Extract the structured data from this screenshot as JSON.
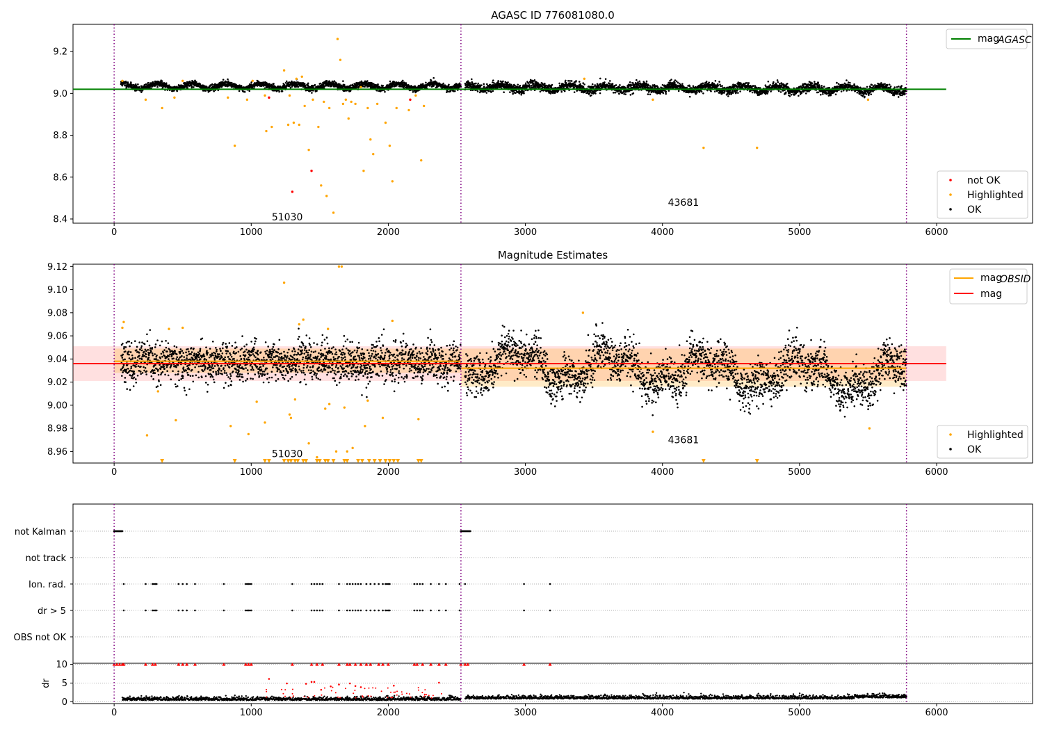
{
  "chart_data": [
    {
      "id": "mag-vs-time",
      "type": "scatter",
      "title": "AGASC ID 776081080.0",
      "xlim": [
        -300,
        6700
      ],
      "ylim": [
        8.38,
        9.33
      ],
      "xticks": [
        0,
        1000,
        2000,
        3000,
        4000,
        5000,
        6000
      ],
      "yticks": [
        8.4,
        8.6,
        8.8,
        9.0,
        9.2
      ],
      "vlines": [
        0,
        2530,
        5780
      ],
      "hline": {
        "y": 9.02,
        "x0": -300,
        "x1": 6070,
        "color": "#008000"
      },
      "annotations": [
        {
          "x": 1150,
          "y": 8.38,
          "text": "51030"
        },
        {
          "x": 4040,
          "y": 8.45,
          "text": "43681"
        }
      ],
      "legend_top": {
        "position": "top-right",
        "entries": [
          {
            "label": "mag",
            "sub": "AGASC",
            "color": "#008000"
          }
        ]
      },
      "legend_bottom": {
        "position": "bottom-right",
        "entries": [
          {
            "label": "not OK",
            "color": "#ff0000"
          },
          {
            "label": "Highlighted",
            "color": "#ffa500"
          },
          {
            "label": "OK",
            "color": "#000000"
          }
        ]
      },
      "ok_segments": [
        {
          "x0": 50,
          "x1": 2530,
          "center": 9.035,
          "spread": 0.012,
          "drift": 0
        },
        {
          "x0": 2560,
          "x1": 5780,
          "center": 9.03,
          "spread": 0.018,
          "drift": -0.01
        }
      ],
      "highlighted": [
        [
          60,
          9.06
        ],
        [
          230,
          8.97
        ],
        [
          350,
          8.93
        ],
        [
          440,
          8.98
        ],
        [
          500,
          9.06
        ],
        [
          830,
          8.98
        ],
        [
          880,
          8.75
        ],
        [
          970,
          8.97
        ],
        [
          1010,
          9.06
        ],
        [
          1100,
          8.99
        ],
        [
          1110,
          8.82
        ],
        [
          1150,
          8.84
        ],
        [
          1240,
          9.11
        ],
        [
          1270,
          8.85
        ],
        [
          1280,
          8.99
        ],
        [
          1310,
          8.86
        ],
        [
          1330,
          9.07
        ],
        [
          1350,
          8.85
        ],
        [
          1370,
          9.08
        ],
        [
          1390,
          8.94
        ],
        [
          1420,
          8.73
        ],
        [
          1450,
          8.97
        ],
        [
          1490,
          8.84
        ],
        [
          1510,
          8.56
        ],
        [
          1530,
          8.96
        ],
        [
          1550,
          8.51
        ],
        [
          1570,
          8.93
        ],
        [
          1600,
          8.43
        ],
        [
          1630,
          9.26
        ],
        [
          1650,
          9.16
        ],
        [
          1670,
          8.95
        ],
        [
          1690,
          8.97
        ],
        [
          1710,
          8.88
        ],
        [
          1730,
          8.96
        ],
        [
          1760,
          8.95
        ],
        [
          1800,
          9.03
        ],
        [
          1820,
          8.63
        ],
        [
          1850,
          8.93
        ],
        [
          1870,
          8.78
        ],
        [
          1890,
          8.71
        ],
        [
          1920,
          8.95
        ],
        [
          1980,
          8.86
        ],
        [
          2010,
          8.75
        ],
        [
          2030,
          8.58
        ],
        [
          2060,
          8.93
        ],
        [
          2150,
          8.92
        ],
        [
          2200,
          8.99
        ],
        [
          2240,
          8.68
        ],
        [
          2260,
          8.94
        ],
        [
          3430,
          9.07
        ],
        [
          3930,
          8.97
        ],
        [
          4300,
          8.74
        ],
        [
          4690,
          8.74
        ],
        [
          5500,
          8.97
        ]
      ],
      "not_ok": [
        [
          1130,
          8.98
        ],
        [
          1300,
          8.53
        ],
        [
          1440,
          8.63
        ],
        [
          2160,
          8.97
        ]
      ]
    },
    {
      "id": "magnitude-estimates",
      "type": "scatter",
      "title": "Magnitude Estimates",
      "xlim": [
        -300,
        6700
      ],
      "ylim": [
        8.95,
        9.122
      ],
      "xticks": [
        0,
        1000,
        2000,
        3000,
        4000,
        5000,
        6000
      ],
      "yticks": [
        8.96,
        8.98,
        9.0,
        9.02,
        9.04,
        9.06,
        9.08,
        9.1,
        9.12
      ],
      "vlines": [
        0,
        2530,
        5780
      ],
      "mag_line": {
        "y": 9.036,
        "band": [
          9.021,
          9.051
        ],
        "x0": -300,
        "x1": 6070,
        "color": "#ff0000"
      },
      "obsid_mag": [
        {
          "x0": 0,
          "x1": 2530,
          "y": 9.038,
          "band": [
            9.028,
            9.049
          ]
        },
        {
          "x0": 2530,
          "x1": 5780,
          "y": 9.032,
          "band": [
            9.016,
            9.049
          ]
        }
      ],
      "annotations": [
        {
          "x": 1150,
          "y": 8.955,
          "text": "51030"
        },
        {
          "x": 4040,
          "y": 8.967,
          "text": "43681"
        }
      ],
      "legend_top": {
        "position": "top-right",
        "entries": [
          {
            "label": "mag",
            "sub": "OBSID",
            "color": "#ffa500"
          },
          {
            "label": "mag",
            "sub": "",
            "color": "#ff0000"
          }
        ]
      },
      "legend_bottom": {
        "position": "bottom-right",
        "entries": [
          {
            "label": "Highlighted",
            "color": "#ffa500"
          },
          {
            "label": "OK",
            "color": "#000000"
          }
        ]
      },
      "highlighted": [
        [
          60,
          9.067
        ],
        [
          70,
          9.072
        ],
        [
          240,
          8.974
        ],
        [
          320,
          9.012
        ],
        [
          400,
          9.066
        ],
        [
          450,
          8.987
        ],
        [
          500,
          9.067
        ],
        [
          850,
          8.982
        ],
        [
          980,
          8.975
        ],
        [
          1040,
          9.003
        ],
        [
          1100,
          8.985
        ],
        [
          1240,
          9.106
        ],
        [
          1280,
          8.992
        ],
        [
          1290,
          8.989
        ],
        [
          1320,
          9.005
        ],
        [
          1350,
          9.07
        ],
        [
          1380,
          9.074
        ],
        [
          1420,
          8.967
        ],
        [
          1480,
          8.955
        ],
        [
          1540,
          8.997
        ],
        [
          1560,
          9.066
        ],
        [
          1570,
          9.001
        ],
        [
          1620,
          8.96
        ],
        [
          1640,
          9.12
        ],
        [
          1660,
          9.12
        ],
        [
          1680,
          8.998
        ],
        [
          1700,
          8.96
        ],
        [
          1740,
          8.963
        ],
        [
          1830,
          8.982
        ],
        [
          1850,
          9.004
        ],
        [
          1960,
          8.989
        ],
        [
          2030,
          9.073
        ],
        [
          2220,
          8.988
        ],
        [
          3420,
          9.08
        ],
        [
          3930,
          8.977
        ],
        [
          5510,
          8.98
        ]
      ],
      "censored": [
        350,
        880,
        1100,
        1130,
        1240,
        1270,
        1290,
        1320,
        1340,
        1380,
        1400,
        1480,
        1500,
        1540,
        1560,
        1600,
        1680,
        1700,
        1780,
        1810,
        1860,
        1900,
        1940,
        1980,
        2010,
        2040,
        2070,
        2220,
        2240,
        4300,
        4690
      ]
    },
    {
      "id": "flags",
      "type": "scatter",
      "xlim": [
        -300,
        6700
      ],
      "xticks": [
        0,
        1000,
        2000,
        3000,
        4000,
        5000,
        6000
      ],
      "rows": [
        "not Kalman",
        "not track",
        "Ion. rad.",
        "dr > 5",
        "OBS not OK"
      ],
      "vlines": [
        0,
        2530,
        5780
      ],
      "not_kalman": [
        [
          0,
          60
        ],
        [
          2530,
          2600
        ]
      ],
      "ion_rad": [
        70,
        230,
        280,
        290,
        300,
        310,
        470,
        500,
        530,
        590,
        800,
        960,
        970,
        980,
        990,
        1000,
        1300,
        1440,
        1460,
        1480,
        1500,
        1520,
        1640,
        1700,
        1720,
        1740,
        1760,
        1780,
        1800,
        1840,
        1870,
        1900,
        1930,
        1960,
        1980,
        1990,
        2000,
        2010,
        2190,
        2210,
        2230,
        2250,
        2310,
        2370,
        2420,
        2520,
        2560,
        2990,
        3180
      ],
      "dr_gt5": [
        70,
        230,
        280,
        290,
        300,
        310,
        470,
        500,
        530,
        590,
        800,
        960,
        970,
        980,
        990,
        1000,
        1300,
        1440,
        1460,
        1480,
        1500,
        1520,
        1640,
        1700,
        1720,
        1740,
        1760,
        1780,
        1800,
        1840,
        1870,
        1900,
        1930,
        1960,
        1980,
        1990,
        2000,
        2010,
        2190,
        2210,
        2230,
        2250,
        2310,
        2370,
        2420,
        2520,
        2990,
        3180
      ]
    },
    {
      "id": "dr",
      "type": "scatter",
      "ylabel": "dr",
      "xlim": [
        -300,
        6700
      ],
      "ylim": [
        -0.5,
        10.3
      ],
      "xticks": [
        0,
        1000,
        2000,
        3000,
        4000,
        5000,
        6000
      ],
      "xtick_labels": [
        "0",
        "1000",
        "2000",
        "3000",
        "4000",
        "5000",
        "6000"
      ],
      "yticks": [
        0,
        5,
        10
      ],
      "vlines": [
        0,
        2530,
        5780
      ],
      "red_capped": [
        0,
        20,
        40,
        60,
        70,
        230,
        280,
        300,
        470,
        500,
        530,
        590,
        800,
        960,
        980,
        1000,
        1300,
        1440,
        1480,
        1520,
        1640,
        1700,
        1720,
        1760,
        1800,
        1840,
        1870,
        1930,
        1960,
        2000,
        2190,
        2210,
        2250,
        2310,
        2370,
        2420,
        2530,
        2560,
        2580,
        2990,
        3180
      ],
      "red_points": [
        [
          1130,
          6.1
        ],
        [
          1260,
          4.9
        ],
        [
          1400,
          4.8
        ],
        [
          1440,
          5.3
        ],
        [
          1460,
          5.3
        ],
        [
          1510,
          3.2
        ],
        [
          1580,
          4.1
        ],
        [
          1640,
          4.6
        ],
        [
          1720,
          4.9
        ],
        [
          1760,
          4.2
        ],
        [
          1800,
          3.9
        ],
        [
          2040,
          4.3
        ],
        [
          2370,
          5.1
        ]
      ],
      "ok_spread": 0.45
    }
  ]
}
